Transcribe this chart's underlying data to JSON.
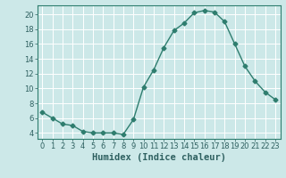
{
  "x": [
    0,
    1,
    2,
    3,
    4,
    5,
    6,
    7,
    8,
    9,
    10,
    11,
    12,
    13,
    14,
    15,
    16,
    17,
    18,
    19,
    20,
    21,
    22,
    23
  ],
  "y": [
    6.8,
    6.0,
    5.2,
    5.0,
    4.2,
    4.0,
    4.0,
    4.0,
    3.8,
    5.8,
    10.2,
    12.5,
    15.5,
    17.8,
    18.8,
    20.2,
    20.5,
    20.3,
    19.0,
    16.0,
    13.0,
    11.0,
    9.5,
    8.5
  ],
  "color": "#2e7d6e",
  "bg_color": "#cce8e8",
  "grid_color": "#ffffff",
  "xlabel": "Humidex (Indice chaleur)",
  "xlim": [
    -0.5,
    23.5
  ],
  "ylim": [
    3.2,
    21.2
  ],
  "yticks": [
    4,
    6,
    8,
    10,
    12,
    14,
    16,
    18,
    20
  ],
  "xtick_labels": [
    "0",
    "1",
    "2",
    "3",
    "4",
    "5",
    "6",
    "7",
    "8",
    "9",
    "10",
    "11",
    "12",
    "13",
    "14",
    "15",
    "16",
    "17",
    "18",
    "19",
    "20",
    "21",
    "22",
    "23"
  ],
  "marker": "D",
  "markersize": 2.5,
  "linewidth": 1.0,
  "tick_fontsize": 6.0,
  "xlabel_fontsize": 7.5
}
